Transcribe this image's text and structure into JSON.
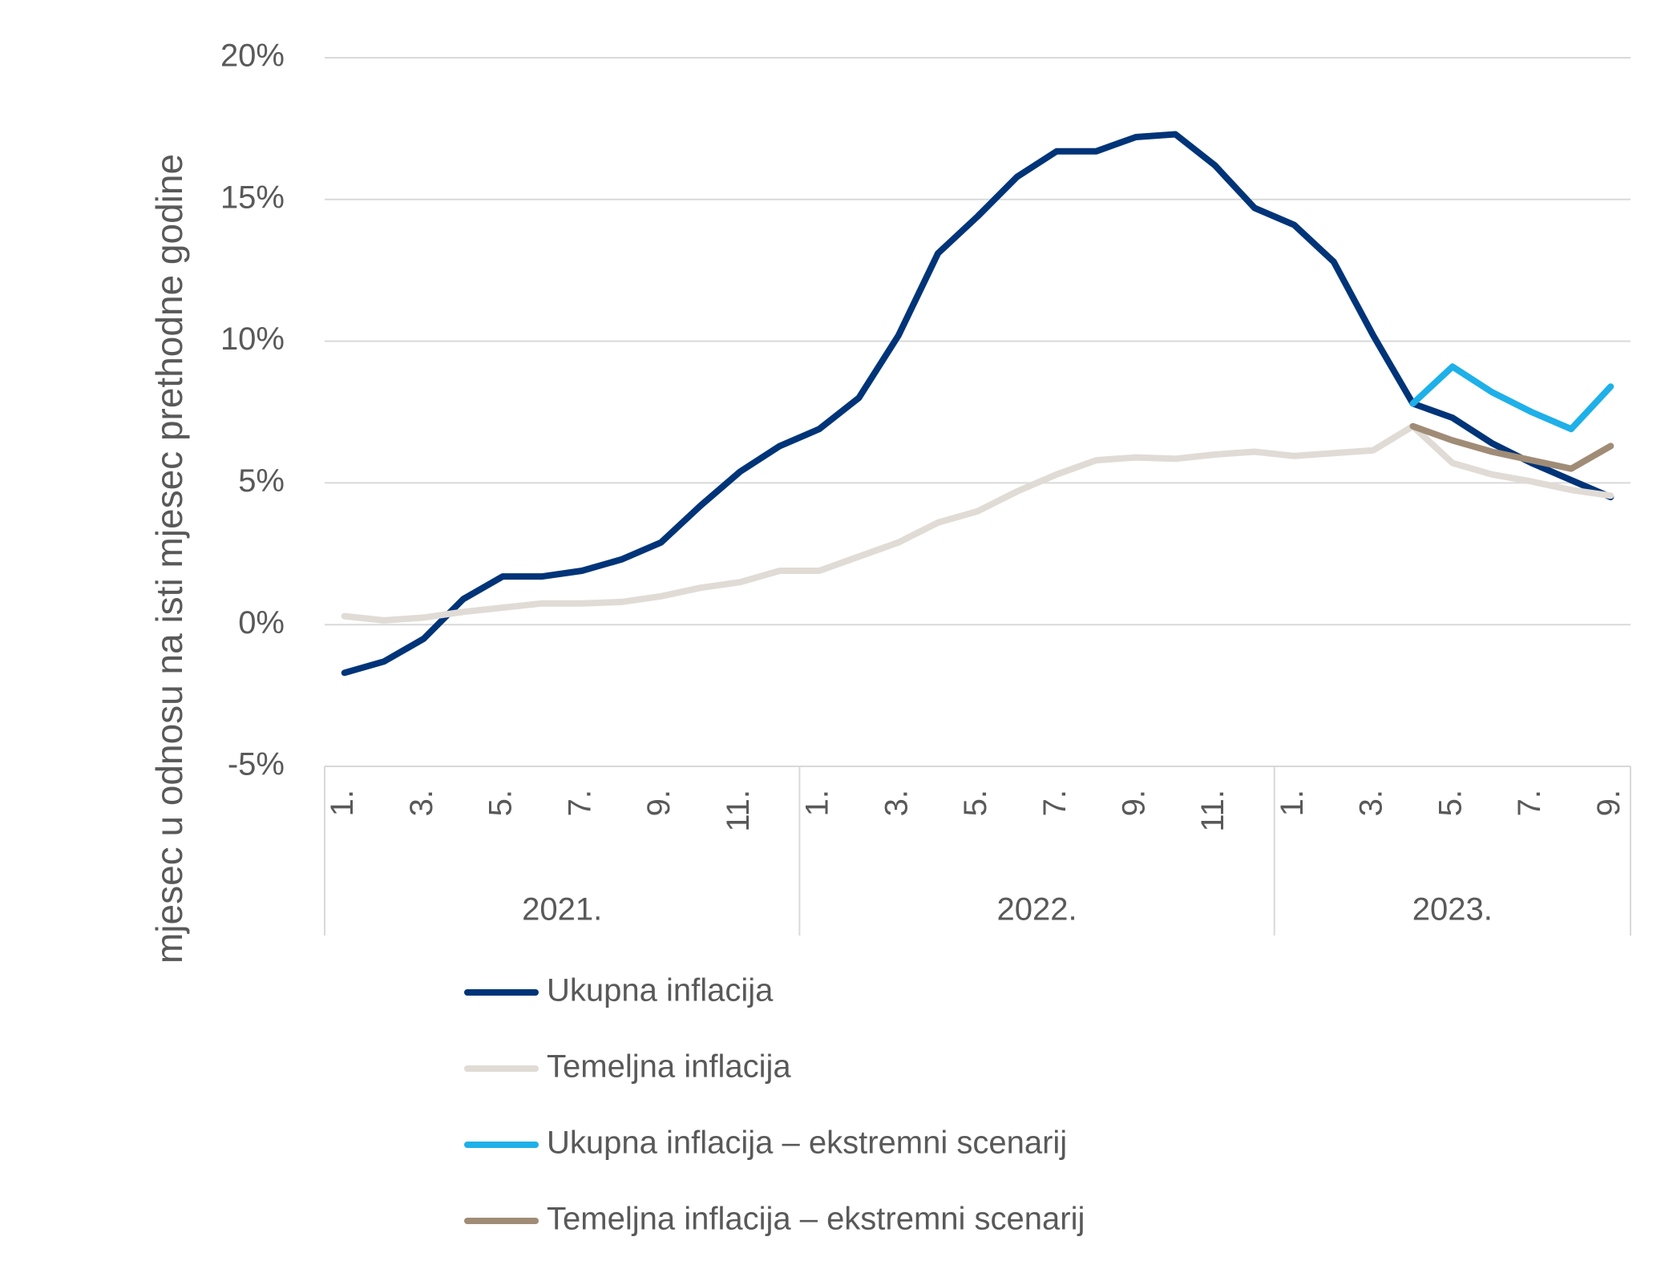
{
  "chart_data": {
    "type": "line",
    "y_label": "mjesec u odnosu na isti mjesec prethodne godine",
    "categories": [
      "1.",
      null,
      "3.",
      null,
      "5.",
      null,
      "7.",
      null,
      "9.",
      null,
      "11.",
      null,
      "1.",
      null,
      "3.",
      null,
      "5.",
      null,
      "7.",
      null,
      "9.",
      null,
      "11.",
      null,
      "1.",
      null,
      "3.",
      null,
      "5.",
      null,
      "7.",
      null,
      "9."
    ],
    "groups": [
      {
        "label": "2021.",
        "size": 12
      },
      {
        "label": "2022.",
        "size": 12
      },
      {
        "label": "2023.",
        "size": 9
      }
    ],
    "series": [
      {
        "name": "Ukupna inflacija",
        "color": "#003478",
        "values": [
          -1.7,
          -1.3,
          -0.5,
          0.9,
          1.7,
          1.7,
          1.9,
          2.3,
          2.9,
          4.2,
          5.4,
          6.3,
          6.9,
          8.0,
          10.2,
          13.1,
          14.4,
          15.8,
          16.7,
          16.7,
          17.2,
          17.3,
          16.2,
          14.7,
          14.1,
          12.8,
          10.2,
          7.8,
          7.3,
          6.4,
          5.7,
          5.1,
          4.5
        ]
      },
      {
        "name": "Temeljna inflacija",
        "color": "#e0dbd5",
        "values": [
          0.3,
          0.15,
          0.25,
          0.45,
          0.6,
          0.75,
          0.75,
          0.8,
          1.0,
          1.3,
          1.5,
          1.9,
          1.9,
          2.4,
          2.9,
          3.6,
          4.0,
          4.7,
          5.3,
          5.8,
          5.9,
          5.85,
          6.0,
          6.1,
          5.95,
          6.05,
          6.15,
          7.0,
          5.7,
          5.3,
          5.05,
          4.75,
          4.55
        ]
      },
      {
        "name": "Ukupna inflacija – ekstremni scenarij",
        "color": "#1eb0e8",
        "values": [
          null,
          null,
          null,
          null,
          null,
          null,
          null,
          null,
          null,
          null,
          null,
          null,
          null,
          null,
          null,
          null,
          null,
          null,
          null,
          null,
          null,
          null,
          null,
          null,
          null,
          null,
          null,
          7.8,
          9.1,
          8.2,
          7.5,
          6.9,
          8.4
        ]
      },
      {
        "name": "Temeljna inflacija – ekstremni scenarij",
        "color": "#a08c76",
        "values": [
          null,
          null,
          null,
          null,
          null,
          null,
          null,
          null,
          null,
          null,
          null,
          null,
          null,
          null,
          null,
          null,
          null,
          null,
          null,
          null,
          null,
          null,
          null,
          null,
          null,
          null,
          null,
          7.0,
          6.5,
          6.1,
          5.8,
          5.5,
          6.3
        ]
      }
    ],
    "ylim": [
      -5,
      20
    ],
    "yticks": [
      {
        "value": -5,
        "label": "-5%"
      },
      {
        "value": 0,
        "label": "0%"
      },
      {
        "value": 5,
        "label": "5%"
      },
      {
        "value": 10,
        "label": "10%"
      },
      {
        "value": 15,
        "label": "15%"
      },
      {
        "value": 20,
        "label": "20%"
      }
    ],
    "grid": true,
    "legend": "bottom"
  }
}
